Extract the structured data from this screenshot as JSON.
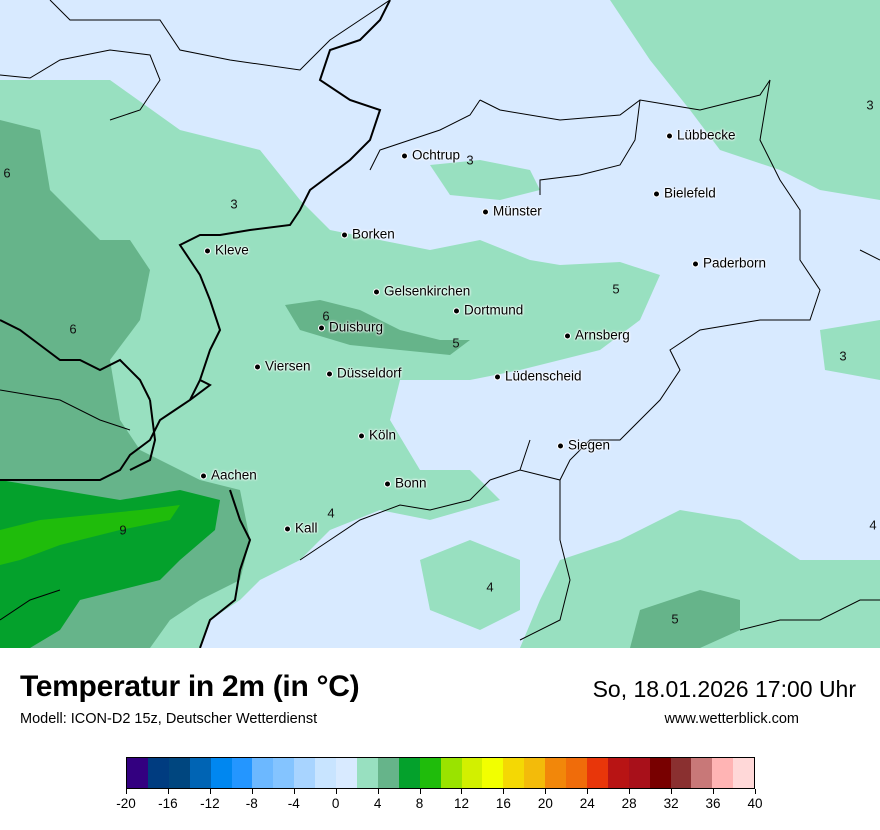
{
  "title": "Temperatur in 2m (in °C)",
  "subtitle": "Modell: ICON-D2 15z, Deutscher Wetterdienst",
  "datetime": "So, 18.01.2026 17:00 Uhr",
  "website": "www.wetterblick.com",
  "cities": [
    "Ochtrup",
    "Lübbecke",
    "Bielefeld",
    "Münster",
    "Borken",
    "Kleve",
    "Paderborn",
    "Gelsenkirchen",
    "Dortmund",
    "Duisburg",
    "Arnsberg",
    "Viersen",
    "Düsseldorf",
    "Lüdenscheid",
    "Köln",
    "Siegen",
    "Aachen",
    "Bonn",
    "Kall"
  ],
  "value_labels": [
    "3",
    "3",
    "6",
    "3",
    "6",
    "6",
    "5",
    "5",
    "3",
    "9",
    "4",
    "4",
    "4",
    "5"
  ],
  "legend": {
    "unit": "°C",
    "ticks": [
      "-20",
      "-16",
      "-12",
      "-8",
      "-4",
      "0",
      "4",
      "8",
      "12",
      "16",
      "20",
      "24",
      "28",
      "32",
      "36",
      "40"
    ],
    "step": 2,
    "colors": [
      "#330080",
      "#003c80",
      "#00467f",
      "#0064b4",
      "#0087f0",
      "#2496ff",
      "#6cb8ff",
      "#84c4ff",
      "#a8d4ff",
      "#c8e4ff",
      "#d8eaff",
      "#98e0c0",
      "#66b48a",
      "#04a12c",
      "#1fbc0b",
      "#9ae300",
      "#d2f000",
      "#f2ff00",
      "#f4d804",
      "#f3bb0a",
      "#f2870a",
      "#f06c0a",
      "#e8360a",
      "#b81414",
      "#a8101a",
      "#780000",
      "#8a3030",
      "#c87878",
      "#ffb4b4",
      "#ffd8d8"
    ]
  }
}
